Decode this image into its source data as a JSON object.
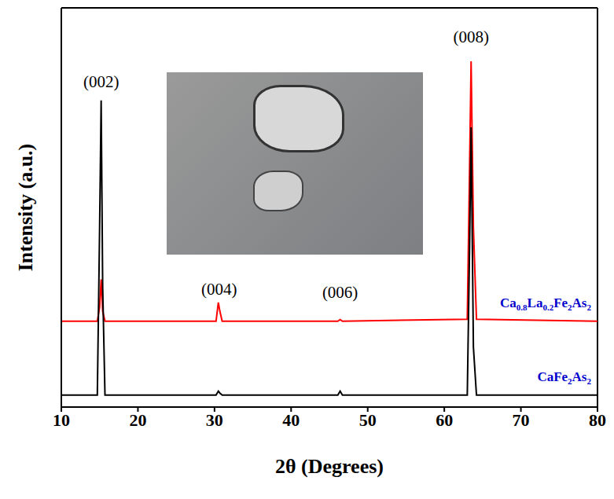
{
  "chart_data": {
    "type": "line",
    "x_label": "2θ (Degrees)",
    "y_label": "Intensity (a.u.)",
    "x": [
      10,
      14.7,
      15.0,
      15.2,
      15.4,
      15.7,
      30.2,
      30.5,
      30.7,
      31.0,
      46.1,
      46.4,
      46.7,
      63.0,
      63.3,
      63.5,
      63.8,
      64.2,
      80
    ],
    "series": [
      {
        "name": "Ca0.8La0.2Fe2As2",
        "color": "#ff0000",
        "values": [
          21.5,
          21.5,
          25,
          32,
          24,
          21.5,
          21.5,
          26.2,
          24,
          21.5,
          21.5,
          21.9,
          21.5,
          22,
          60,
          86.6,
          45,
          22,
          21.5
        ]
      },
      {
        "name": "CaFe2As2",
        "color": "#000000",
        "values": [
          3,
          3,
          45,
          76.8,
          30,
          3,
          3,
          4,
          3.5,
          3,
          3,
          4,
          3,
          3,
          40,
          70.1,
          15,
          3,
          3
        ]
      }
    ],
    "xlim": [
      10,
      80
    ],
    "xticks": [
      10,
      20,
      30,
      40,
      50,
      60,
      70,
      80
    ],
    "ylim": [
      0,
      100
    ],
    "tick_labels": "x",
    "annotations": [
      {
        "text": "(002)",
        "x": 15.2,
        "y": 81.5
      },
      {
        "text": "(004)",
        "x": 30.6,
        "y": 29.5
      },
      {
        "text": "(006)",
        "x": 46.4,
        "y": 28.7
      },
      {
        "text": "(008)",
        "x": 63.5,
        "y": 92.7
      }
    ]
  }
}
